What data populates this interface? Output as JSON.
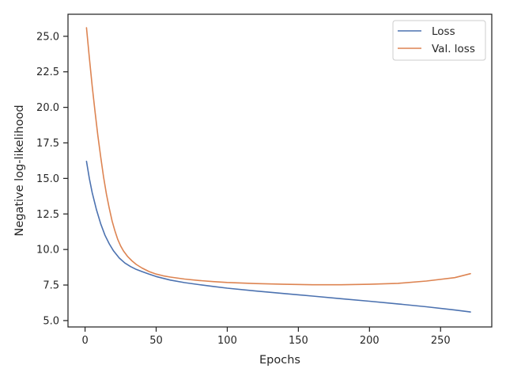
{
  "chart_data": {
    "type": "line",
    "title": "",
    "xlabel": "Epochs",
    "ylabel": "Negative log-likelihood",
    "xlim": [
      -12,
      286
    ],
    "ylim": [
      4.55,
      26.55
    ],
    "grid": false,
    "legend_position": "top-right",
    "x_ticks": [
      0,
      50,
      100,
      150,
      200,
      250
    ],
    "y_ticks": [
      5.0,
      7.5,
      10.0,
      12.5,
      15.0,
      17.5,
      20.0,
      22.5,
      25.0
    ],
    "x_tick_labels": [
      "0",
      "50",
      "100",
      "150",
      "200",
      "250"
    ],
    "y_tick_labels": [
      "5.0",
      "7.5",
      "10.0",
      "12.5",
      "15.0",
      "17.5",
      "20.0",
      "22.5",
      "25.0"
    ],
    "series": [
      {
        "name": "Loss",
        "color": "#4c72b0",
        "x": [
          1,
          3,
          5,
          8,
          11,
          14,
          17,
          20,
          24,
          28,
          32,
          36,
          40,
          45,
          50,
          60,
          70,
          80,
          90,
          100,
          120,
          140,
          160,
          180,
          200,
          220,
          240,
          260,
          271
        ],
        "y": [
          16.2,
          15.0,
          14.0,
          12.8,
          11.8,
          11.0,
          10.4,
          9.9,
          9.4,
          9.05,
          8.8,
          8.6,
          8.45,
          8.27,
          8.1,
          7.85,
          7.67,
          7.53,
          7.4,
          7.28,
          7.08,
          6.9,
          6.72,
          6.54,
          6.36,
          6.17,
          5.97,
          5.74,
          5.6
        ]
      },
      {
        "name": "Val. loss",
        "color": "#dd8452",
        "x": [
          1,
          3,
          5,
          7,
          9,
          11,
          13,
          15,
          17,
          19,
          21,
          23,
          25,
          27,
          30,
          33,
          36,
          40,
          45,
          50,
          55,
          60,
          70,
          80,
          90,
          100,
          120,
          140,
          160,
          180,
          200,
          220,
          240,
          260,
          271
        ],
        "y": [
          25.6,
          23.5,
          21.5,
          19.7,
          18.0,
          16.5,
          15.1,
          13.9,
          12.9,
          12.0,
          11.3,
          10.7,
          10.25,
          9.9,
          9.5,
          9.2,
          8.95,
          8.7,
          8.45,
          8.27,
          8.15,
          8.06,
          7.92,
          7.82,
          7.74,
          7.68,
          7.6,
          7.55,
          7.52,
          7.52,
          7.55,
          7.62,
          7.78,
          8.02,
          8.3
        ]
      }
    ]
  }
}
